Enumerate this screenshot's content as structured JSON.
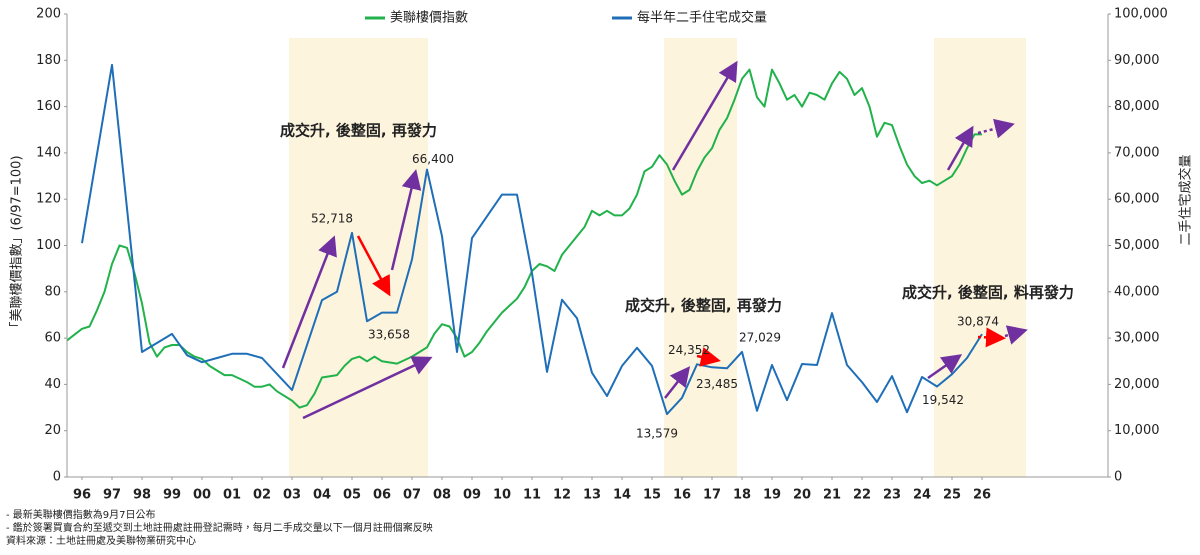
{
  "chart_data": {
    "type": "line",
    "legend_position": "top",
    "y_label": "「美聯樓價指數」(6/97=100)",
    "y2_label": "二手住宅成交量",
    "xlim": [
      1995.5,
      2030.2
    ],
    "xticks": [
      {
        "value": 1996,
        "label": "96"
      },
      {
        "value": 1997,
        "label": "97"
      },
      {
        "value": 1998,
        "label": "98"
      },
      {
        "value": 1999,
        "label": "99"
      },
      {
        "value": 2000,
        "label": "00"
      },
      {
        "value": 2001,
        "label": "01"
      },
      {
        "value": 2002,
        "label": "02"
      },
      {
        "value": 2003,
        "label": "03"
      },
      {
        "value": 2004,
        "label": "04"
      },
      {
        "value": 2005,
        "label": "05"
      },
      {
        "value": 2006,
        "label": "06"
      },
      {
        "value": 2007,
        "label": "07"
      },
      {
        "value": 2008,
        "label": "08"
      },
      {
        "value": 2009,
        "label": "09"
      },
      {
        "value": 2010,
        "label": "10"
      },
      {
        "value": 2011,
        "label": "11"
      },
      {
        "value": 2012,
        "label": "12"
      },
      {
        "value": 2013,
        "label": "13"
      },
      {
        "value": 2014,
        "label": "14"
      },
      {
        "value": 2015,
        "label": "15"
      },
      {
        "value": 2016,
        "label": "16"
      },
      {
        "value": 2017,
        "label": "17"
      },
      {
        "value": 2018,
        "label": "18"
      },
      {
        "value": 2019,
        "label": "19"
      },
      {
        "value": 2020,
        "label": "20"
      },
      {
        "value": 2021,
        "label": "21"
      },
      {
        "value": 2022,
        "label": "22"
      },
      {
        "value": 2023,
        "label": "23"
      },
      {
        "value": 2024,
        "label": "24"
      },
      {
        "value": 2025,
        "label": "25"
      },
      {
        "value": 2026,
        "label": "26"
      }
    ],
    "ylim": [
      0,
      200
    ],
    "yticks": [
      0,
      20,
      40,
      60,
      80,
      100,
      120,
      140,
      160,
      180,
      200
    ],
    "y2lim": [
      0,
      100000
    ],
    "y2ticks": [
      {
        "value": 0,
        "label": "0"
      },
      {
        "value": 10000,
        "label": "10,000"
      },
      {
        "value": 20000,
        "label": "20,000"
      },
      {
        "value": 30000,
        "label": "30,000"
      },
      {
        "value": 40000,
        "label": "40,000"
      },
      {
        "value": 50000,
        "label": "50,000"
      },
      {
        "value": 60000,
        "label": "60,000"
      },
      {
        "value": 70000,
        "label": "70,000"
      },
      {
        "value": 80000,
        "label": "80,000"
      },
      {
        "value": 90000,
        "label": "90,000"
      },
      {
        "value": 100000,
        "label": "100,000"
      }
    ],
    "series": [
      {
        "name": "美聯樓價指數",
        "color": "#21b24b",
        "x": [
          1995.5,
          1996,
          1996.25,
          1996.5,
          1996.75,
          1997,
          1997.25,
          1997.5,
          1997.75,
          1998,
          1998.25,
          1998.5,
          1998.75,
          1999,
          1999.25,
          1999.5,
          1999.75,
          2000,
          2000.25,
          2000.5,
          2000.75,
          2001,
          2001.5,
          2001.75,
          2002,
          2002.25,
          2002.5,
          2003,
          2003.25,
          2003.5,
          2003.75,
          2004,
          2004.5,
          2004.75,
          2005,
          2005.25,
          2005.5,
          2005.75,
          2006,
          2006.5,
          2007,
          2007.5,
          2007.75,
          2008,
          2008.25,
          2008.5,
          2008.75,
          2009,
          2009.25,
          2009.5,
          2009.75,
          2010,
          2010.5,
          2010.75,
          2011,
          2011.25,
          2011.5,
          2011.75,
          2012,
          2012.25,
          2012.5,
          2012.75,
          2013,
          2013.25,
          2013.5,
          2013.75,
          2014,
          2014.25,
          2014.5,
          2014.75,
          2015,
          2015.25,
          2015.5,
          2015.75,
          2016,
          2016.25,
          2016.5,
          2016.75,
          2017,
          2017.25,
          2017.5,
          2017.75,
          2018,
          2018.25,
          2018.5,
          2018.75,
          2019,
          2019.25,
          2019.5,
          2019.75,
          2020,
          2020.25,
          2020.5,
          2020.75,
          2021,
          2021.25,
          2021.5,
          2021.75,
          2022,
          2022.25,
          2022.5,
          2022.75,
          2023,
          2023.25,
          2023.5,
          2023.75,
          2024,
          2024.25,
          2024.5,
          2024.75,
          2025,
          2025.25,
          2025.5,
          2025.75,
          2026
        ],
        "values": [
          59,
          64,
          65,
          72,
          80,
          92,
          100,
          99,
          88,
          75,
          58,
          52,
          56,
          57,
          57,
          54,
          52,
          51,
          48,
          46,
          44,
          44,
          41,
          39,
          39,
          40,
          37,
          33,
          30,
          31,
          36,
          43,
          44,
          48,
          51,
          52,
          50,
          52,
          50,
          49,
          52,
          56,
          62,
          66,
          65,
          60,
          52,
          54,
          58,
          63,
          67,
          71,
          77,
          82,
          89,
          92,
          91,
          89,
          96,
          100,
          104,
          108,
          115,
          113,
          115,
          113,
          113,
          116,
          122,
          132,
          134,
          139,
          135,
          128,
          122,
          124,
          132,
          138,
          142,
          150,
          155,
          163,
          172,
          176,
          164,
          160,
          176,
          170,
          163,
          165,
          160,
          166,
          165,
          163,
          170,
          175,
          172,
          165,
          168,
          160,
          147,
          153,
          152,
          143,
          135,
          130,
          127,
          128,
          126,
          128,
          130,
          135,
          142,
          148,
          148
        ]
      },
      {
        "name": "每半年二手住宅成交量",
        "color": "#1f6fb8",
        "axis": "y2",
        "x": [
          1996,
          1997,
          1998,
          1999,
          1999.5,
          2000,
          2000.5,
          2001,
          2001.5,
          2002,
          2003,
          2004,
          2004.5,
          2005,
          2005.5,
          2006,
          2006.5,
          2007,
          2007.5,
          2008,
          2008.5,
          2009,
          2010,
          2010.5,
          2011,
          2011.5,
          2012,
          2012.5,
          2013,
          2013.5,
          2014,
          2014.5,
          2015,
          2015.5,
          2016,
          2016.5,
          2017,
          2017.5,
          2018,
          2018.5,
          2019,
          2019.5,
          2020,
          2020.5,
          2021,
          2021.5,
          2022,
          2022.5,
          2023,
          2023.5,
          2024,
          2024.5,
          2025,
          2025.5,
          2026
        ],
        "values": [
          50500,
          89000,
          27000,
          30900,
          26300,
          24800,
          25700,
          26600,
          26600,
          25700,
          18800,
          38200,
          40000,
          52718,
          33658,
          35500,
          35500,
          47000,
          66400,
          52000,
          27000,
          51600,
          61000,
          61000,
          44000,
          22700,
          38300,
          34300,
          22500,
          17500,
          24000,
          27900,
          24000,
          13579,
          17100,
          24352,
          23700,
          23485,
          27029,
          14300,
          24200,
          16600,
          24400,
          24200,
          35400,
          24200,
          20500,
          16200,
          21800,
          14000,
          21600,
          19542,
          22200,
          25700,
          30874
        ],
        "value_labels": [
          null,
          null,
          null,
          null,
          null,
          null,
          null,
          null,
          null,
          null,
          null,
          null,
          null,
          "52,718",
          "33,658",
          null,
          null,
          null,
          "66,400",
          null,
          null,
          null,
          null,
          null,
          null,
          null,
          null,
          null,
          null,
          null,
          null,
          null,
          null,
          "13,579",
          null,
          "24,352",
          null,
          "23,485",
          "27,029",
          null,
          null,
          null,
          null,
          null,
          null,
          null,
          null,
          null,
          null,
          null,
          null,
          "19,542",
          null,
          null,
          "30,874"
        ]
      }
    ],
    "annotations": [
      "成交升, 後整固, 再發力",
      "成交升, 後整固, 再發力",
      "成交升, 後整固, 料再發力"
    ],
    "notes": [
      "- 最新美聯樓價指數為9月7日公布",
      "- 鑑於簽署買賣合約至遞交到土地註冊處註冊登記需時，每月二手成交量以下一個月註冊個案反映",
      "資料來源：土地註冊處及美聯物業研究中心"
    ]
  }
}
